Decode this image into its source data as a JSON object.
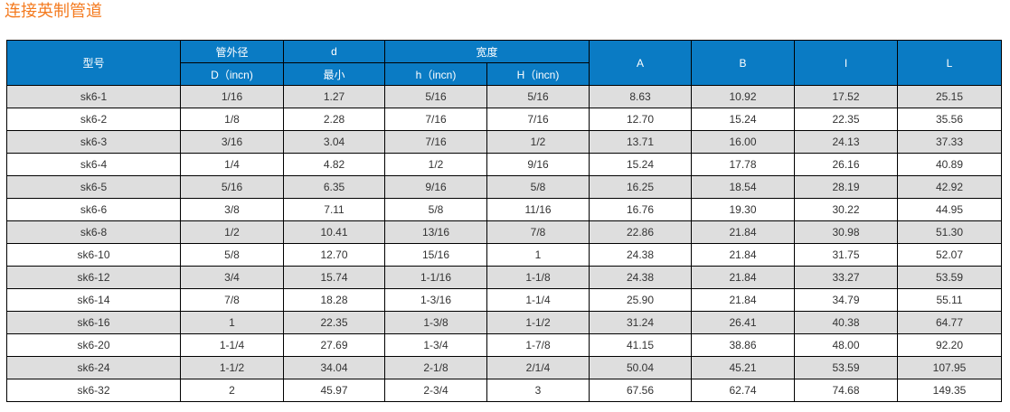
{
  "title": "连接英制管道",
  "header": {
    "model": "型号",
    "od_top": "管外径",
    "od_bottom": "D（incn)",
    "d_top": "d",
    "d_bottom": "最小",
    "width": "宽度",
    "h": "h（incn)",
    "H": "H（incn)",
    "A": "A",
    "B": "B",
    "I": "I",
    "L": "L"
  },
  "rows": [
    [
      "sk6-1",
      "1/16",
      "1.27",
      "5/16",
      "5/16",
      "8.63",
      "10.92",
      "17.52",
      "25.15"
    ],
    [
      "sk6-2",
      "1/8",
      "2.28",
      "7/16",
      "7/16",
      "12.70",
      "15.24",
      "22.35",
      "35.56"
    ],
    [
      "sk6-3",
      "3/16",
      "3.04",
      "7/16",
      "1/2",
      "13.71",
      "16.00",
      "24.13",
      "37.33"
    ],
    [
      "sk6-4",
      "1/4",
      "4.82",
      "1/2",
      "9/16",
      "15.24",
      "17.78",
      "26.16",
      "40.89"
    ],
    [
      "sk6-5",
      "5/16",
      "6.35",
      "9/16",
      "5/8",
      "16.25",
      "18.54",
      "28.19",
      "42.92"
    ],
    [
      "sk6-6",
      "3/8",
      "7.11",
      "5/8",
      "11/16",
      "16.76",
      "19.30",
      "30.22",
      "44.95"
    ],
    [
      "sk6-8",
      "1/2",
      "10.41",
      "13/16",
      "7/8",
      "22.86",
      "21.84",
      "30.98",
      "51.30"
    ],
    [
      "sk6-10",
      "5/8",
      "12.70",
      "15/16",
      "1",
      "24.38",
      "21.84",
      "31.75",
      "52.07"
    ],
    [
      "sk6-12",
      "3/4",
      "15.74",
      "1-1/16",
      "1-1/8",
      "24.38",
      "21.84",
      "33.27",
      "53.59"
    ],
    [
      "sk6-14",
      "7/8",
      "18.28",
      "1-3/16",
      "1-1/4",
      "25.90",
      "21.84",
      "34.79",
      "55.11"
    ],
    [
      "sk6-16",
      "1",
      "22.35",
      "1-3/8",
      "1-1/2",
      "31.24",
      "26.41",
      "40.38",
      "64.77"
    ],
    [
      "sk6-20",
      "1-1/4",
      "27.69",
      "1-3/4",
      "1-7/8",
      "41.15",
      "38.86",
      "48.00",
      "92.20"
    ],
    [
      "sk6-24",
      "1-1/2",
      "34.04",
      "2-1/8",
      "2/1/4",
      "50.04",
      "45.21",
      "53.59",
      "107.95"
    ],
    [
      "sk6-32",
      "2",
      "45.97",
      "2-3/4",
      "3",
      "67.56",
      "62.74",
      "74.68",
      "149.35"
    ]
  ],
  "colors": {
    "header_bg": "#0a7bc4",
    "alt_row": "#dedede",
    "title": "#f47b20"
  }
}
